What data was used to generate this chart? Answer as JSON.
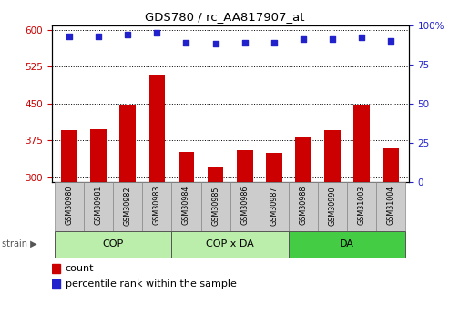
{
  "title": "GDS780 / rc_AA817907_at",
  "samples": [
    "GSM30980",
    "GSM30981",
    "GSM30982",
    "GSM30983",
    "GSM30984",
    "GSM30985",
    "GSM30986",
    "GSM30987",
    "GSM30988",
    "GSM30990",
    "GSM31003",
    "GSM31004"
  ],
  "counts": [
    395,
    397,
    447,
    510,
    352,
    322,
    355,
    350,
    383,
    395,
    448,
    358
  ],
  "percentiles": [
    93,
    93,
    94,
    95,
    89,
    88,
    89,
    89,
    91,
    91,
    92,
    90
  ],
  "ylim_left": [
    290,
    610
  ],
  "ylim_right": [
    0,
    100
  ],
  "yticks_left": [
    300,
    375,
    450,
    525,
    600
  ],
  "yticks_right": [
    0,
    25,
    50,
    75,
    100
  ],
  "bar_color": "#CC0000",
  "dot_color": "#2222CC",
  "sample_box_color": "#CCCCCC",
  "group_light_color": "#BBEEAA",
  "group_dark_color": "#44CC44",
  "left_tick_color": "#CC0000",
  "right_tick_color": "#2222CC",
  "groups_info": [
    {
      "label": "COP",
      "cols": [
        0,
        1,
        2,
        3
      ],
      "color": "#BBEEAA"
    },
    {
      "label": "COP x DA",
      "cols": [
        4,
        5,
        6,
        7
      ],
      "color": "#BBEEAA"
    },
    {
      "label": "DA",
      "cols": [
        8,
        9,
        10,
        11
      ],
      "color": "#44CC44"
    }
  ]
}
